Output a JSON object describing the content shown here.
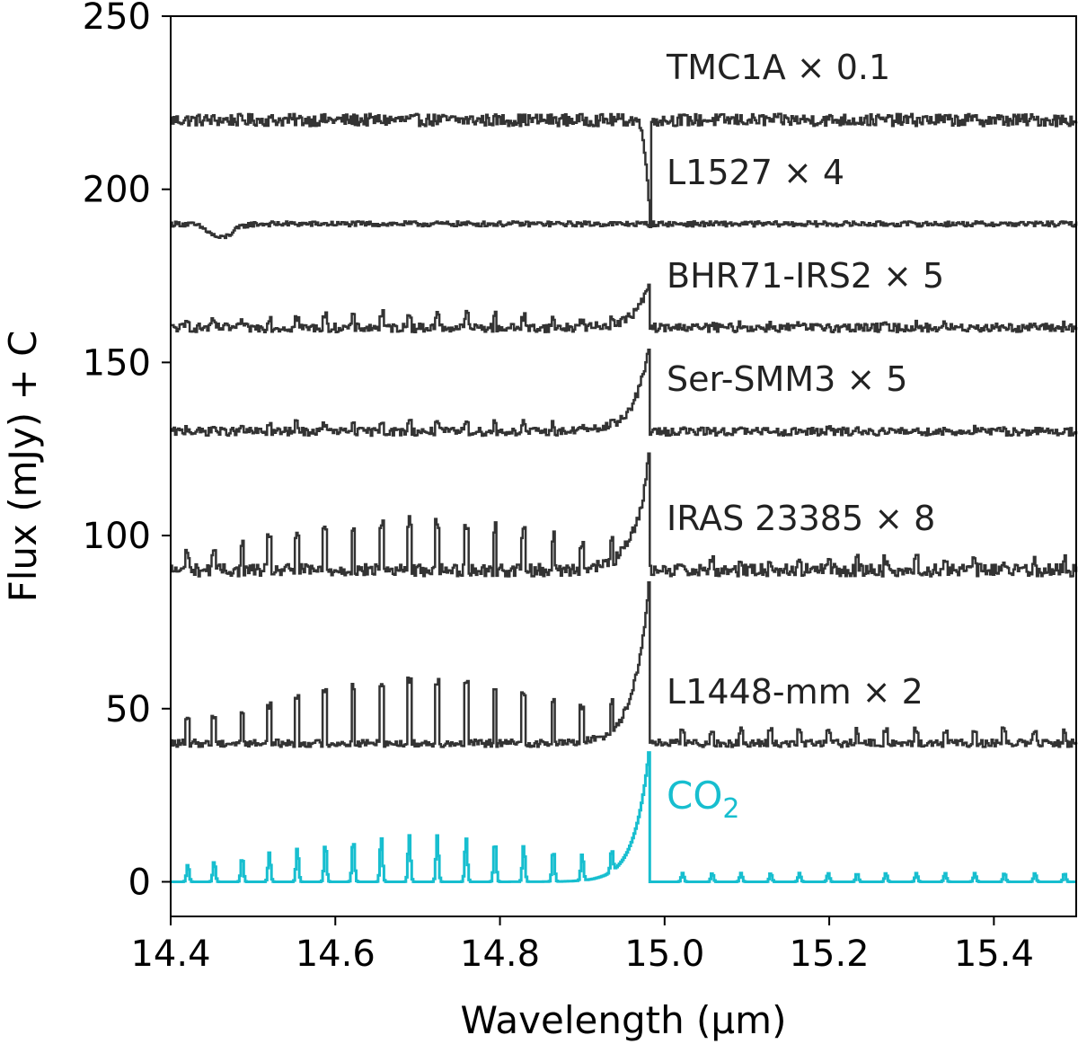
{
  "chart_data": {
    "type": "line",
    "xlabel": "Wavelength (μm)",
    "ylabel": "Flux (mJy) + C",
    "xlim": [
      14.4,
      15.5
    ],
    "ylim": [
      -10,
      250
    ],
    "x_ticks": [
      "14.4",
      "14.6",
      "14.8",
      "15.0",
      "15.2",
      "15.4"
    ],
    "y_ticks": [
      "0",
      "50",
      "100",
      "150",
      "200",
      "250"
    ],
    "grid": false,
    "line_color": "#333333",
    "model_color": "#17becf",
    "series": [
      {
        "name": "TMC1A × 0.1",
        "offset": 220,
        "profile": "absorption",
        "peak_depth": 22,
        "noise": 2.2,
        "lines": 0.0
      },
      {
        "name": "L1527 × 4",
        "offset": 190,
        "profile": "flat",
        "noise": 1.0,
        "dip_at": 14.46,
        "dip_depth": 4
      },
      {
        "name": "BHR71-IRS2 × 5",
        "offset": 160,
        "profile": "emission",
        "peak_height": 12,
        "noise": 1.4,
        "lines": 4
      },
      {
        "name": "Ser-SMM3 × 5",
        "offset": 130,
        "profile": "emission",
        "peak_height": 24,
        "noise": 1.3,
        "lines": 3
      },
      {
        "name": "IRAS 23385 × 8",
        "offset": 90,
        "profile": "emission",
        "peak_height": 32,
        "noise": 2.0,
        "lines": 14
      },
      {
        "name": "L1448-mm × 2",
        "offset": 40,
        "profile": "emission",
        "peak_height": 46,
        "noise": 1.2,
        "lines": 18
      },
      {
        "name": "CO2",
        "offset": 0,
        "profile": "model",
        "peak_height": 37,
        "noise": 0,
        "lines": 13
      }
    ],
    "co2_label": {
      "main": "CO",
      "subscript": "2"
    },
    "q_branch_center": 14.98
  }
}
